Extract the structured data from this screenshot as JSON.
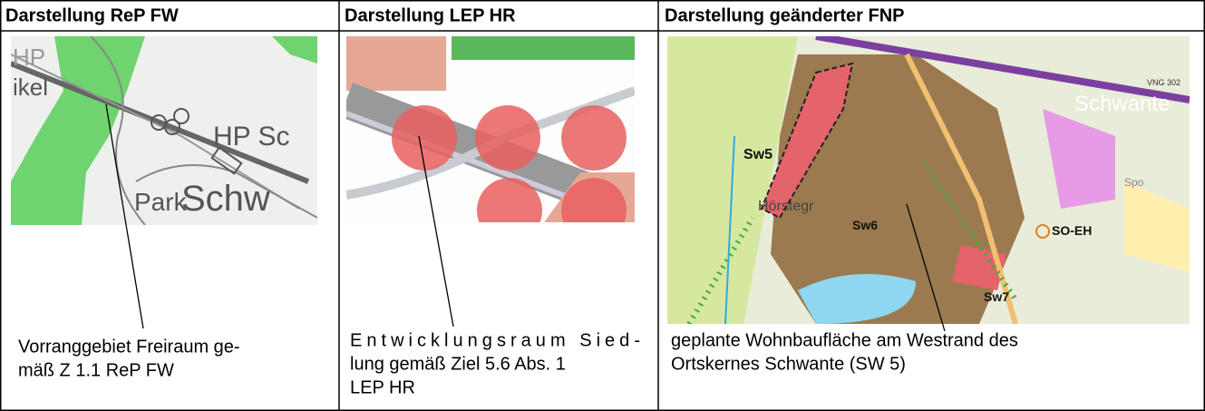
{
  "table": {
    "headers": [
      "Darstellung ReP FW",
      "Darstellung LEP HR",
      "Darstellung geänderter FNP"
    ],
    "cells": [
      {
        "map_labels": [
          "HP",
          "ikel",
          "HP Sc",
          "Park",
          "Schw"
        ],
        "caption": [
          "Vorranggebiet Freiraum ge-",
          "mäß Z 1.1 ReP FW"
        ]
      },
      {
        "map_labels": [],
        "caption": [
          "Entwicklungsraum Sied-",
          "lung gemäß Ziel 5.6 Abs. 1",
          "LEP HR"
        ]
      },
      {
        "map_labels": [
          "Schwante",
          "Sw5",
          "Sw6",
          "Sw7",
          "SO-EH",
          "Hörstegr",
          "VNG 302",
          "Spo"
        ],
        "caption": [
          "geplante Wohnbaufläche am Westrand des",
          "Ortskernes Schwante (SW 5)"
        ]
      }
    ]
  }
}
